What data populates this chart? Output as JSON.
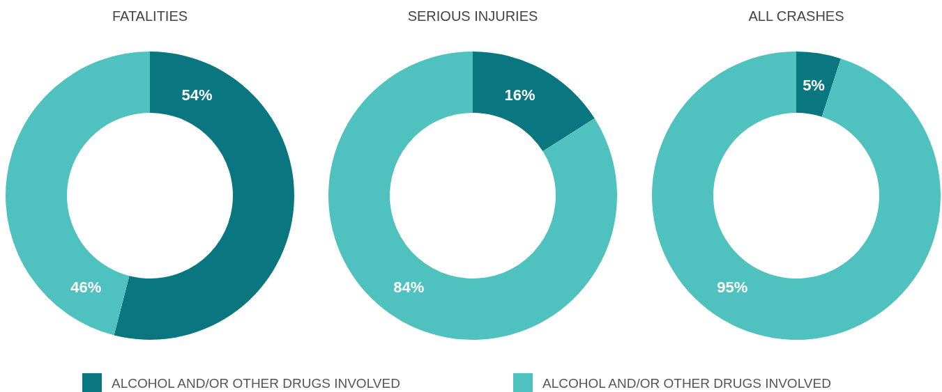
{
  "chart_data": [
    {
      "type": "donut",
      "title": "FATALITIES",
      "categories": [
        "ALCOHOL AND/OR OTHER DRUGS INVOLVED",
        "ALCOHOL AND/OR OTHER DRUGS INVOLVED"
      ],
      "values": [
        54,
        46
      ],
      "colors": [
        "#0a7680",
        "#4fc1be"
      ],
      "value_labels": [
        "54%",
        "46%"
      ],
      "legend": "bottom"
    },
    {
      "type": "donut",
      "title": "SERIOUS INJURIES",
      "values": [
        16,
        84
      ],
      "colors": [
        "#0a7680",
        "#4fc1be"
      ],
      "value_labels": [
        "16%",
        "84%"
      ]
    },
    {
      "type": "donut",
      "title": "ALL CRASHES",
      "values": [
        5,
        95
      ],
      "colors": [
        "#0a7680",
        "#4fc1be"
      ],
      "value_labels": [
        "5%",
        "95%"
      ]
    }
  ]
}
